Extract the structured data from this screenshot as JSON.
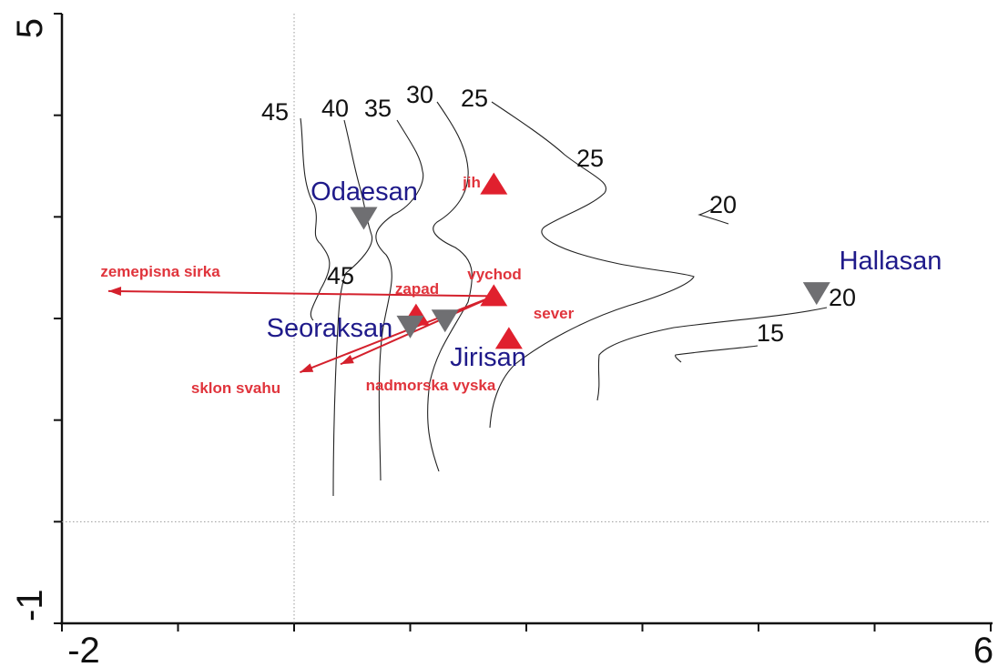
{
  "chart_data": {
    "type": "scatter",
    "title": "",
    "xlabel": "",
    "ylabel": "",
    "xlim": [
      -2,
      6
    ],
    "ylim": [
      -1,
      5
    ],
    "x_tick_labels": [
      "-2",
      "6"
    ],
    "y_tick_labels": [
      "5",
      "-1"
    ],
    "x_minor_ticks": [
      -1,
      0,
      1,
      2,
      3,
      4,
      5
    ],
    "y_minor_ticks": [
      0,
      1,
      2,
      3,
      4
    ],
    "zero_lines": true,
    "sites": [
      {
        "name": "Odaesan",
        "x": 0.6,
        "y": 2.99
      },
      {
        "name": "Seoraksan",
        "x": 1.0,
        "y": 1.92
      },
      {
        "name": "Jirisan",
        "x": 1.3,
        "y": 1.98
      },
      {
        "name": "Hallasan",
        "x": 4.5,
        "y": 2.25
      }
    ],
    "aspects": [
      {
        "name": "jih",
        "x": 1.72,
        "y": 3.32
      },
      {
        "name": "vychod",
        "x": 1.72,
        "y": 2.22
      },
      {
        "name": "zapad",
        "x": 1.05,
        "y": 2.03
      },
      {
        "name": "sever",
        "x": 1.85,
        "y": 1.8
      }
    ],
    "env_vectors": [
      {
        "name": "zemepisna sirka",
        "x": -1.6,
        "y": 2.27
      },
      {
        "name": "sklon svahu",
        "x": 0.05,
        "y": 1.47
      },
      {
        "name": "nadmorska vyska",
        "x": 0.4,
        "y": 1.55
      }
    ],
    "contour_labels": [
      "45",
      "40",
      "35",
      "30",
      "25",
      "25",
      "20",
      "45",
      "20",
      "15"
    ],
    "colors": {
      "site_symbol": "#6f6f72",
      "site_label": "#1f1a8a",
      "aspect_symbol": "#e0202e",
      "env_vector": "#d4202c",
      "env_label": "#e0343c"
    }
  }
}
